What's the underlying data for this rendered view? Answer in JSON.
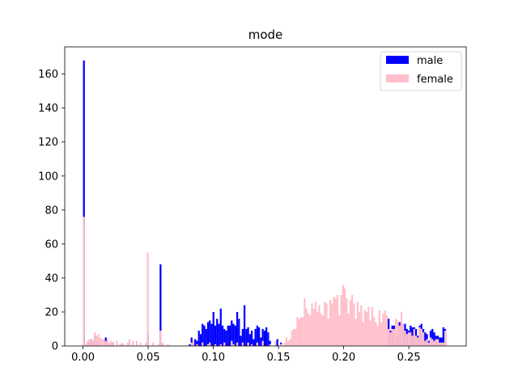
{
  "chart_data": {
    "type": "bar",
    "title": "mode",
    "xlabel": "",
    "ylabel": "",
    "xlim": [
      -0.014,
      0.294
    ],
    "ylim": [
      0,
      176
    ],
    "bin_width": 0.0014,
    "xticks": [
      "0.00",
      "0.05",
      "0.10",
      "0.15",
      "0.20",
      "0.25"
    ],
    "yticks": [
      "0",
      "20",
      "40",
      "60",
      "80",
      "100",
      "120",
      "140",
      "160"
    ],
    "legend_position": "top-right",
    "series": [
      {
        "name": "male",
        "color": "#0000ff",
        "bins": [
          [
            0.0,
            168
          ],
          [
            0.0028,
            2
          ],
          [
            0.0042,
            3
          ],
          [
            0.0056,
            4
          ],
          [
            0.007,
            3
          ],
          [
            0.0084,
            6
          ],
          [
            0.0112,
            3
          ],
          [
            0.0168,
            5
          ],
          [
            0.0224,
            2
          ],
          [
            0.028,
            1
          ],
          [
            0.049,
            7
          ],
          [
            0.0588,
            48
          ],
          [
            0.0602,
            1
          ],
          [
            0.0812,
            1
          ],
          [
            0.0826,
            5
          ],
          [
            0.084,
            3
          ],
          [
            0.0854,
            4
          ],
          [
            0.0868,
            3
          ],
          [
            0.0882,
            9
          ],
          [
            0.0896,
            7
          ],
          [
            0.091,
            13
          ],
          [
            0.0924,
            12
          ],
          [
            0.0938,
            10
          ],
          [
            0.0952,
            14
          ],
          [
            0.0966,
            15
          ],
          [
            0.098,
            13
          ],
          [
            0.0994,
            20
          ],
          [
            0.1008,
            12
          ],
          [
            0.1022,
            16
          ],
          [
            0.1036,
            13
          ],
          [
            0.105,
            22
          ],
          [
            0.1064,
            12
          ],
          [
            0.1078,
            10
          ],
          [
            0.1092,
            9
          ],
          [
            0.1106,
            12
          ],
          [
            0.112,
            12
          ],
          [
            0.1134,
            15
          ],
          [
            0.1148,
            13
          ],
          [
            0.1162,
            12
          ],
          [
            0.1176,
            20
          ],
          [
            0.119,
            16
          ],
          [
            0.1204,
            6
          ],
          [
            0.1218,
            10
          ],
          [
            0.1232,
            24
          ],
          [
            0.1246,
            10
          ],
          [
            0.126,
            11
          ],
          [
            0.1274,
            7
          ],
          [
            0.1288,
            9
          ],
          [
            0.1302,
            4
          ],
          [
            0.1316,
            10
          ],
          [
            0.133,
            12
          ],
          [
            0.1344,
            11
          ],
          [
            0.1358,
            5
          ],
          [
            0.1372,
            10
          ],
          [
            0.1386,
            9
          ],
          [
            0.14,
            11
          ],
          [
            0.1414,
            8
          ],
          [
            0.1428,
            3
          ],
          [
            0.1484,
            4
          ],
          [
            0.1512,
            2
          ],
          [
            0.2338,
            16
          ],
          [
            0.2352,
            9
          ],
          [
            0.2366,
            12
          ],
          [
            0.238,
            12
          ],
          [
            0.2394,
            6
          ],
          [
            0.2422,
            14
          ],
          [
            0.2436,
            12
          ],
          [
            0.245,
            13
          ],
          [
            0.2464,
            13
          ],
          [
            0.2478,
            10
          ],
          [
            0.2492,
            9
          ],
          [
            0.2506,
            12
          ],
          [
            0.252,
            11
          ],
          [
            0.2534,
            11
          ],
          [
            0.2548,
            10
          ],
          [
            0.2562,
            6
          ],
          [
            0.2576,
            12
          ],
          [
            0.259,
            13
          ],
          [
            0.2604,
            10
          ],
          [
            0.2618,
            8
          ],
          [
            0.2632,
            7
          ],
          [
            0.2646,
            3
          ],
          [
            0.266,
            9
          ],
          [
            0.2674,
            10
          ],
          [
            0.2688,
            8
          ],
          [
            0.2702,
            6
          ],
          [
            0.2716,
            6
          ],
          [
            0.273,
            5
          ],
          [
            0.2744,
            5
          ],
          [
            0.2758,
            11
          ],
          [
            0.2772,
            10
          ]
        ]
      },
      {
        "name": "female",
        "color": "#ffc0cb",
        "bins": [
          [
            0.0,
            76
          ],
          [
            0.0014,
            1
          ],
          [
            0.0028,
            3
          ],
          [
            0.0042,
            4
          ],
          [
            0.0056,
            4
          ],
          [
            0.007,
            3
          ],
          [
            0.0084,
            8
          ],
          [
            0.0098,
            6
          ],
          [
            0.0112,
            7
          ],
          [
            0.0126,
            5
          ],
          [
            0.014,
            4
          ],
          [
            0.0154,
            4
          ],
          [
            0.0168,
            3
          ],
          [
            0.0182,
            4
          ],
          [
            0.0196,
            2
          ],
          [
            0.021,
            3
          ],
          [
            0.0224,
            2
          ],
          [
            0.0252,
            3
          ],
          [
            0.028,
            1
          ],
          [
            0.0294,
            2
          ],
          [
            0.0308,
            1
          ],
          [
            0.0336,
            2
          ],
          [
            0.035,
            4
          ],
          [
            0.0378,
            3
          ],
          [
            0.0406,
            3
          ],
          [
            0.0434,
            2
          ],
          [
            0.0476,
            2
          ],
          [
            0.049,
            55
          ],
          [
            0.0532,
            2
          ],
          [
            0.0574,
            1
          ],
          [
            0.0588,
            9
          ],
          [
            0.0602,
            2
          ],
          [
            0.0644,
            1
          ],
          [
            0.0826,
            2
          ],
          [
            0.084,
            3
          ],
          [
            0.0868,
            1
          ],
          [
            0.091,
            2
          ],
          [
            0.0952,
            1
          ],
          [
            0.0966,
            2
          ],
          [
            0.1008,
            1
          ],
          [
            0.105,
            1
          ],
          [
            0.1078,
            2
          ],
          [
            0.1134,
            3
          ],
          [
            0.1148,
            1
          ],
          [
            0.1176,
            2
          ],
          [
            0.1218,
            2
          ],
          [
            0.126,
            2
          ],
          [
            0.1288,
            1
          ],
          [
            0.133,
            2
          ],
          [
            0.1372,
            3
          ],
          [
            0.1428,
            1
          ],
          [
            0.147,
            3
          ],
          [
            0.1512,
            1
          ],
          [
            0.154,
            2
          ],
          [
            0.1554,
            5
          ],
          [
            0.1568,
            3
          ],
          [
            0.1582,
            4
          ],
          [
            0.1596,
            9
          ],
          [
            0.161,
            10
          ],
          [
            0.1624,
            10
          ],
          [
            0.1638,
            17
          ],
          [
            0.1652,
            16
          ],
          [
            0.1666,
            17
          ],
          [
            0.168,
            17
          ],
          [
            0.1694,
            28
          ],
          [
            0.1708,
            22
          ],
          [
            0.1722,
            19
          ],
          [
            0.1736,
            18
          ],
          [
            0.175,
            25
          ],
          [
            0.1764,
            22
          ],
          [
            0.1778,
            26
          ],
          [
            0.1792,
            20
          ],
          [
            0.1806,
            24
          ],
          [
            0.182,
            19
          ],
          [
            0.1834,
            18
          ],
          [
            0.1848,
            26
          ],
          [
            0.1862,
            25
          ],
          [
            0.1876,
            16
          ],
          [
            0.189,
            27
          ],
          [
            0.1904,
            25
          ],
          [
            0.1918,
            29
          ],
          [
            0.1932,
            28
          ],
          [
            0.1946,
            30
          ],
          [
            0.196,
            18
          ],
          [
            0.1974,
            30
          ],
          [
            0.1988,
            36
          ],
          [
            0.2002,
            34
          ],
          [
            0.2016,
            28
          ],
          [
            0.203,
            19
          ],
          [
            0.2044,
            27
          ],
          [
            0.2058,
            30
          ],
          [
            0.2072,
            25
          ],
          [
            0.2086,
            16
          ],
          [
            0.21,
            26
          ],
          [
            0.2114,
            20
          ],
          [
            0.2128,
            24
          ],
          [
            0.2142,
            14
          ],
          [
            0.2156,
            21
          ],
          [
            0.217,
            20
          ],
          [
            0.2184,
            23
          ],
          [
            0.2198,
            15
          ],
          [
            0.2212,
            23
          ],
          [
            0.2226,
            17
          ],
          [
            0.224,
            14
          ],
          [
            0.2254,
            12
          ],
          [
            0.2268,
            21
          ],
          [
            0.2282,
            14
          ],
          [
            0.2296,
            19
          ],
          [
            0.231,
            21
          ],
          [
            0.2324,
            18
          ],
          [
            0.2338,
            10
          ],
          [
            0.2352,
            8
          ],
          [
            0.2366,
            10
          ],
          [
            0.238,
            10
          ],
          [
            0.2394,
            16
          ],
          [
            0.2408,
            15
          ],
          [
            0.2422,
            12
          ],
          [
            0.2436,
            20
          ],
          [
            0.245,
            13
          ],
          [
            0.2464,
            9
          ],
          [
            0.2478,
            7
          ],
          [
            0.2492,
            8
          ],
          [
            0.2506,
            8
          ],
          [
            0.252,
            6
          ],
          [
            0.2534,
            10
          ],
          [
            0.2548,
            6
          ],
          [
            0.2562,
            5
          ],
          [
            0.2576,
            11
          ],
          [
            0.259,
            10
          ],
          [
            0.2604,
            8
          ],
          [
            0.2618,
            3
          ],
          [
            0.2632,
            4
          ],
          [
            0.2646,
            2
          ],
          [
            0.266,
            5
          ],
          [
            0.2674,
            4
          ],
          [
            0.2688,
            3
          ],
          [
            0.2702,
            4
          ],
          [
            0.2716,
            4
          ],
          [
            0.273,
            2
          ],
          [
            0.2744,
            2
          ],
          [
            0.2758,
            2
          ],
          [
            0.2772,
            9
          ]
        ]
      }
    ]
  }
}
